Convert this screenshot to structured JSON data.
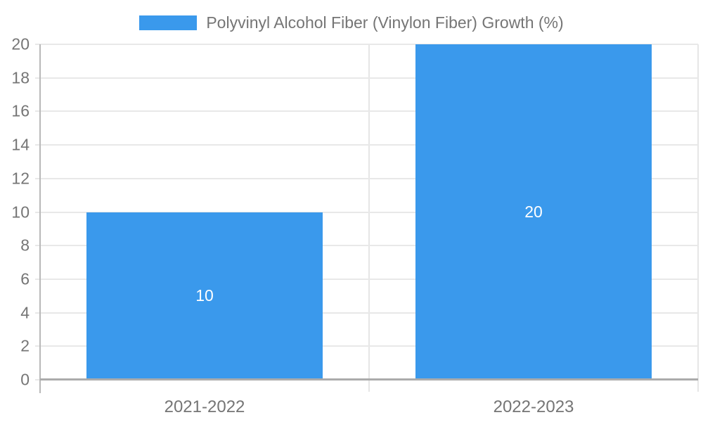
{
  "legend": {
    "label": "Polyvinyl Alcohol Fiber (Vinylon Fiber) Growth (%)"
  },
  "colors": {
    "bar": "#3a99ec",
    "bar_label_text": "#ffffff",
    "axis_line": "#ababab",
    "gridline": "#e8e8e8",
    "tick_label_text": "#757575",
    "background": "#ffffff"
  },
  "chart_data": {
    "type": "bar",
    "title": "",
    "categories": [
      "2021-2022",
      "2022-2023"
    ],
    "series": [
      {
        "name": "Polyvinyl Alcohol Fiber (Vinylon Fiber) Growth (%)",
        "values": [
          10,
          20
        ]
      }
    ],
    "data_labels": [
      10,
      20
    ],
    "xlabel": "",
    "ylabel": "",
    "ylim": [
      0,
      20
    ],
    "ytick_step": 2,
    "yticks": [
      0,
      2,
      4,
      6,
      8,
      10,
      12,
      14,
      16,
      18,
      20
    ],
    "grid": true,
    "legend_position": "top",
    "bar_width_fraction": 0.72
  }
}
